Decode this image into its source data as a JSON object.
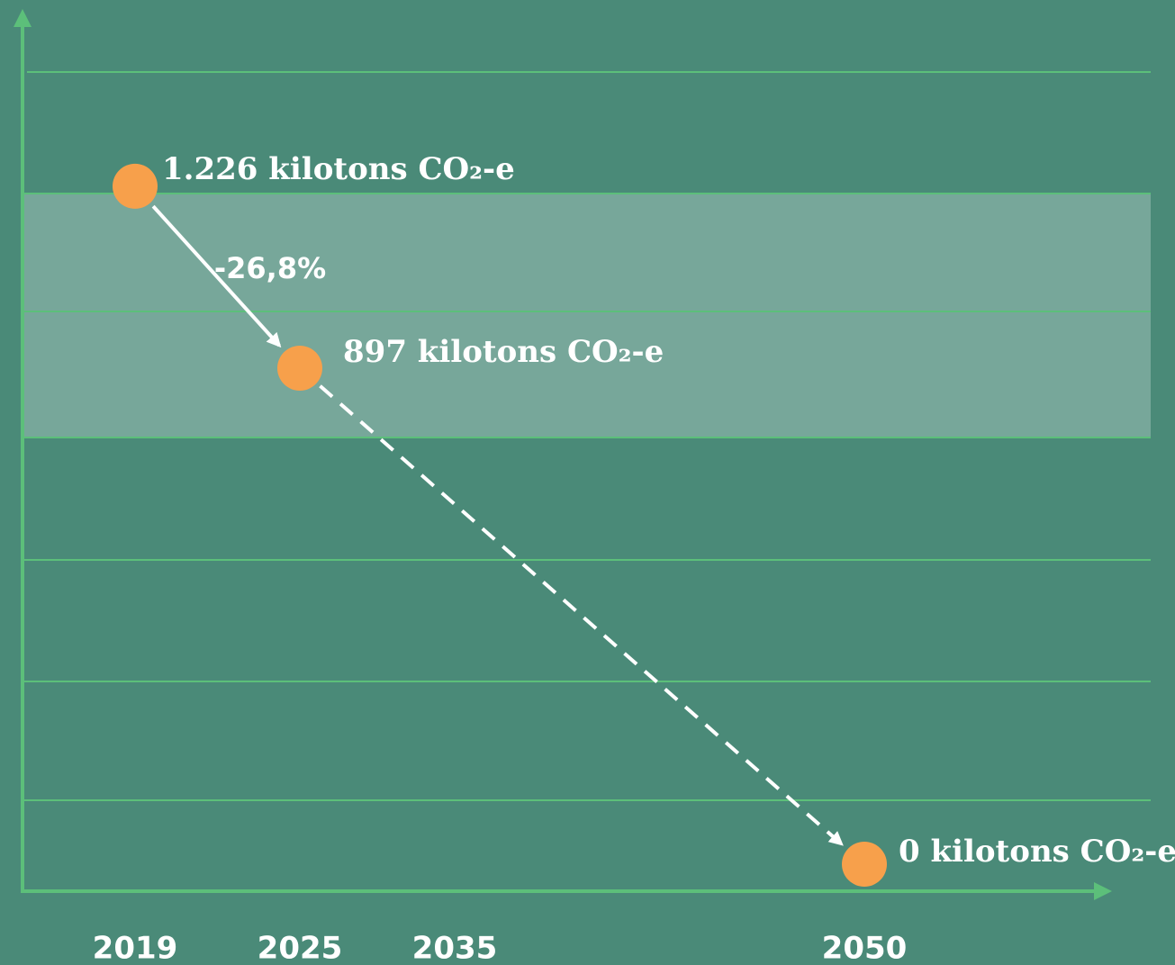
{
  "chart_data": {
    "type": "line",
    "categories": [
      "2019",
      "2025",
      "2035",
      "2050"
    ],
    "values": [
      1226,
      897,
      null,
      0
    ],
    "value_labels": [
      "1.226 kilotons CO₂-e",
      "897 kilotons CO₂-e",
      null,
      "0 kilotons CO₂-e"
    ],
    "annotation": "-26,8%",
    "color": "#f7a04b",
    "ylim": [
      0,
      1400
    ]
  }
}
